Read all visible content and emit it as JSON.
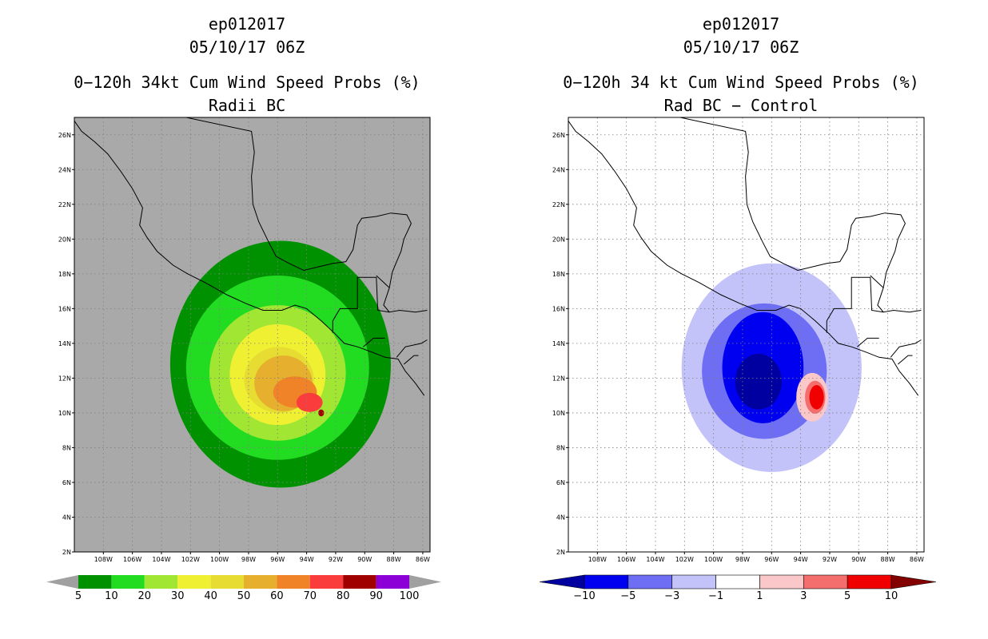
{
  "chart_data": [
    {
      "type": "heatmap",
      "storm": "ep012017",
      "datetime": "05/10/17 06Z",
      "title": "0−120h 34kt Cum Wind Speed Probs (%)",
      "subtitle": "Radii BC",
      "x_ticks": [
        "108W",
        "106W",
        "104W",
        "102W",
        "100W",
        "98W",
        "96W",
        "94W",
        "92W",
        "90W",
        "88W",
        "86W"
      ],
      "y_ticks": [
        "2N",
        "4N",
        "6N",
        "8N",
        "10N",
        "12N",
        "14N",
        "16N",
        "18N",
        "20N",
        "22N",
        "24N",
        "26N"
      ],
      "xlim": [
        -110,
        -85.5
      ],
      "ylim": [
        2,
        27
      ],
      "grid": true,
      "background": "#a9a9a9",
      "colorbar": {
        "labels": [
          "5",
          "10",
          "20",
          "30",
          "40",
          "50",
          "60",
          "70",
          "80",
          "90",
          "100"
        ],
        "colors": [
          "#009100",
          "#22dc22",
          "#a0e632",
          "#f0f032",
          "#e6dc32",
          "#e6af2d",
          "#f08228",
          "#fa3c3c",
          "#a00000",
          "#8c00d7"
        ],
        "end_color": "#a0a0a0"
      },
      "contours": [
        {
          "level": 5,
          "color": "#009100",
          "center": [
            -95.8,
            12.8
          ],
          "rx": 7.6,
          "ry": 7.1
        },
        {
          "level": 10,
          "color": "#22dc22",
          "center": [
            -96.0,
            12.6
          ],
          "rx": 6.3,
          "ry": 5.3
        },
        {
          "level": 20,
          "color": "#a0e632",
          "center": [
            -96.0,
            12.3
          ],
          "rx": 4.7,
          "ry": 3.9
        },
        {
          "level": 30,
          "color": "#f0f032",
          "center": [
            -96.0,
            12.2
          ],
          "rx": 3.3,
          "ry": 2.9
        },
        {
          "level": 40,
          "color": "#e6dc32",
          "center": [
            -95.9,
            11.9
          ],
          "rx": 2.4,
          "ry": 1.9
        },
        {
          "level": 50,
          "color": "#e6af2d",
          "center": [
            -95.6,
            11.7
          ],
          "rx": 2.0,
          "ry": 1.6
        },
        {
          "level": 60,
          "color": "#f08228",
          "center": [
            -94.8,
            11.2
          ],
          "rx": 1.5,
          "ry": 0.9
        },
        {
          "level": 70,
          "color": "#fa3c3c",
          "center": [
            -93.8,
            10.6
          ],
          "rx": 0.9,
          "ry": 0.55
        },
        {
          "level": 80,
          "color": "#a00000",
          "center": [
            -93.0,
            10.0
          ],
          "rx": 0.2,
          "ry": 0.2
        }
      ]
    },
    {
      "type": "heatmap",
      "storm": "ep012017",
      "datetime": "05/10/17 06Z",
      "title": "0−120h 34 kt Cum Wind Speed Probs (%)",
      "subtitle": "Rad BC − Control",
      "x_ticks": [
        "108W",
        "106W",
        "104W",
        "102W",
        "100W",
        "98W",
        "96W",
        "94W",
        "92W",
        "90W",
        "88W",
        "86W"
      ],
      "y_ticks": [
        "2N",
        "4N",
        "6N",
        "8N",
        "10N",
        "12N",
        "14N",
        "16N",
        "18N",
        "20N",
        "22N",
        "24N",
        "26N"
      ],
      "xlim": [
        -110,
        -85.5
      ],
      "ylim": [
        2,
        27
      ],
      "grid": true,
      "background": "#ffffff",
      "colorbar": {
        "labels": [
          "−10",
          "−5",
          "−3",
          "−1",
          "1",
          "3",
          "5",
          "10"
        ],
        "colors": [
          "#0000a0",
          "#0000f0",
          "#6e6ef5",
          "#c3c3fa",
          "#ffffff",
          "#fac8c8",
          "#f56e6e",
          "#f00000",
          "#820000"
        ]
      },
      "contours": [
        {
          "level": -1,
          "color": "#c3c3fa",
          "center": [
            -96.0,
            12.6
          ],
          "rx": 6.2,
          "ry": 6.0
        },
        {
          "level": -3,
          "color": "#6e6ef5",
          "center": [
            -96.5,
            12.4
          ],
          "rx": 4.3,
          "ry": 3.9
        },
        {
          "level": -5,
          "color": "#0000f0",
          "center": [
            -96.6,
            12.6
          ],
          "rx": 2.8,
          "ry": 3.2
        },
        {
          "level": -10,
          "color": "#0000a0",
          "center": [
            -96.9,
            11.8
          ],
          "rx": 1.6,
          "ry": 1.6
        },
        {
          "level": 1,
          "color": "#fac8c8",
          "center": [
            -93.2,
            10.9
          ],
          "rx": 1.1,
          "ry": 1.4
        },
        {
          "level": 3,
          "color": "#f56e6e",
          "center": [
            -93.0,
            10.9
          ],
          "rx": 0.7,
          "ry": 0.95
        },
        {
          "level": 5,
          "color": "#f00000",
          "center": [
            -92.9,
            10.9
          ],
          "rx": 0.5,
          "ry": 0.7
        }
      ]
    }
  ]
}
